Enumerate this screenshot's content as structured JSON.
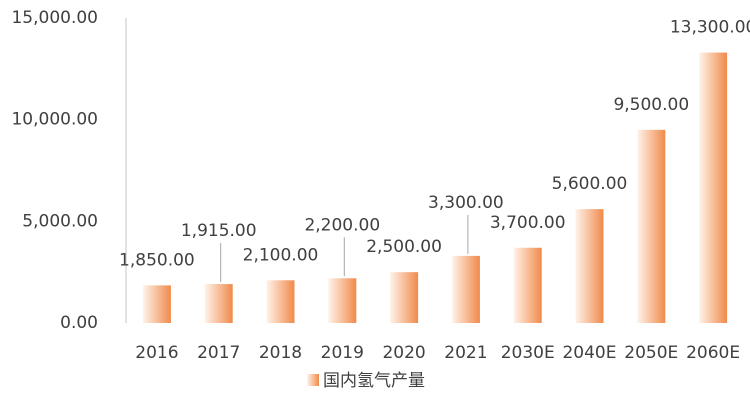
{
  "chart_data": {
    "type": "bar",
    "categories": [
      "2016",
      "2017",
      "2018",
      "2019",
      "2020",
      "2021",
      "2030E",
      "2040E",
      "2050E",
      "2060E"
    ],
    "series": [
      {
        "name": "国内氢气产量",
        "color": "#f08a4b",
        "values": [
          1850,
          1915,
          2100,
          2200,
          2500,
          3300,
          3700,
          5600,
          9500,
          13300
        ],
        "value_labels": [
          "1,850.00",
          "1,915.00",
          "2,100.00",
          "2,200.00",
          "2,500.00",
          "3,300.00",
          "3,700.00",
          "5,600.00",
          "9,500.00",
          "13,300.00"
        ]
      }
    ],
    "ylim": [
      0,
      15000
    ],
    "yticks": [
      {
        "value": 0,
        "label": "0.00"
      },
      {
        "value": 5000,
        "label": "5,000.00"
      },
      {
        "value": 10000,
        "label": "10,000.00"
      },
      {
        "value": 15000,
        "label": "15,000.00"
      }
    ],
    "grid": false
  }
}
